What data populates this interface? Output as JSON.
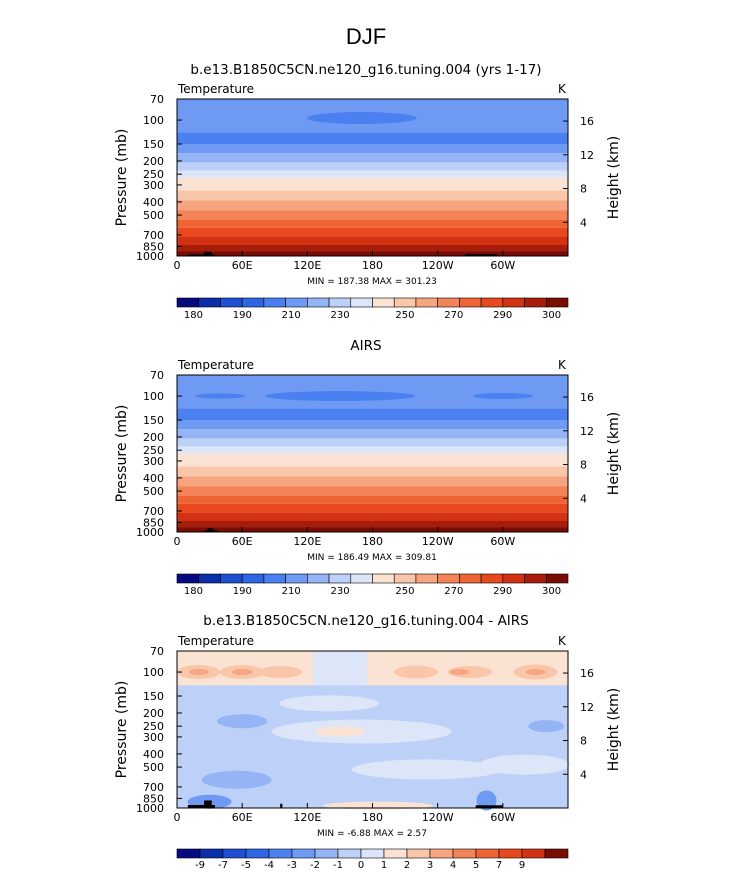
{
  "figure_title": "DJF",
  "chart_data": [
    {
      "type": "heatmap",
      "title": "b.e13.B1850C5CN.ne120_g16.tuning.004 (yrs 1-17)",
      "variable_label": "Temperature",
      "units": "K",
      "ylabel_left": "Pressure (mb)",
      "ylabel_right": "Height (km)",
      "x_ticks": [
        "0",
        "60E",
        "120E",
        "180",
        "120W",
        "60W"
      ],
      "x_tick_lon": [
        0,
        60,
        120,
        180,
        240,
        300
      ],
      "xlim": [
        0,
        360
      ],
      "p_ticks": [
        "70",
        "100",
        "150",
        "200",
        "250",
        "300",
        "400",
        "500",
        "700",
        "850",
        "1000"
      ],
      "p_tick_values": [
        70,
        100,
        150,
        200,
        250,
        300,
        400,
        500,
        700,
        850,
        1000
      ],
      "ylim_mb": [
        1000,
        70
      ],
      "y_scale": "log",
      "h_ticks": [
        "4",
        "8",
        "12",
        "16"
      ],
      "h_tick_km": [
        4,
        8,
        12,
        16
      ],
      "stats": "MIN = 187.38   MAX = 301.23",
      "min": 187.38,
      "max": 301.23,
      "colorbar_labels": [
        "180",
        "190",
        "210",
        "230",
        "250",
        "270",
        "290",
        "300"
      ]
    },
    {
      "type": "heatmap",
      "title": "AIRS",
      "variable_label": "Temperature",
      "units": "K",
      "ylabel_left": "Pressure (mb)",
      "ylabel_right": "Height (km)",
      "x_ticks": [
        "0",
        "60E",
        "120E",
        "180",
        "120W",
        "60W"
      ],
      "x_tick_lon": [
        0,
        60,
        120,
        180,
        240,
        300
      ],
      "xlim": [
        0,
        360
      ],
      "p_ticks": [
        "70",
        "100",
        "150",
        "200",
        "250",
        "300",
        "400",
        "500",
        "700",
        "850",
        "1000"
      ],
      "p_tick_values": [
        70,
        100,
        150,
        200,
        250,
        300,
        400,
        500,
        700,
        850,
        1000
      ],
      "ylim_mb": [
        1000,
        70
      ],
      "y_scale": "log",
      "h_ticks": [
        "4",
        "8",
        "12",
        "16"
      ],
      "h_tick_km": [
        4,
        8,
        12,
        16
      ],
      "stats": "MIN = 186.49   MAX = 309.81",
      "min": 186.49,
      "max": 309.81,
      "colorbar_labels": [
        "180",
        "190",
        "210",
        "230",
        "250",
        "270",
        "290",
        "300"
      ]
    },
    {
      "type": "heatmap",
      "title": "b.e13.B1850C5CN.ne120_g16.tuning.004 - AIRS",
      "variable_label": "Temperature",
      "units": "K",
      "ylabel_left": "Pressure (mb)",
      "ylabel_right": "Height (km)",
      "x_ticks": [
        "0",
        "60E",
        "120E",
        "180",
        "120W",
        "60W"
      ],
      "x_tick_lon": [
        0,
        60,
        120,
        180,
        240,
        300
      ],
      "xlim": [
        0,
        360
      ],
      "p_ticks": [
        "70",
        "100",
        "150",
        "200",
        "250",
        "300",
        "400",
        "500",
        "700",
        "850",
        "1000"
      ],
      "p_tick_values": [
        70,
        100,
        150,
        200,
        250,
        300,
        400,
        500,
        700,
        850,
        1000
      ],
      "ylim_mb": [
        1000,
        70
      ],
      "y_scale": "log",
      "h_ticks": [
        "4",
        "8",
        "12",
        "16"
      ],
      "h_tick_km": [
        4,
        8,
        12,
        16
      ],
      "stats": "MIN =   -6.88   MAX =     2.57",
      "min": -6.88,
      "max": 2.57,
      "colorbar_labels": [
        "-9",
        "-7",
        "-5",
        "-4",
        "-3",
        "-2",
        "-1",
        "0",
        "1",
        "2",
        "3",
        "4",
        "5",
        "7",
        "9"
      ]
    }
  ],
  "colors": {
    "abs_scale": [
      "#050a80",
      "#0a2daa",
      "#1f4fd2",
      "#2f66e6",
      "#4a80f0",
      "#6e9af4",
      "#95b4f6",
      "#bcd0f8",
      "#dde6f8",
      "#fbe3d4",
      "#f9c6aa",
      "#f6a580",
      "#f28458",
      "#ef6435",
      "#e8491f",
      "#d23212",
      "#a81c0a",
      "#7a0c04"
    ],
    "diff_scale": [
      "#050a80",
      "#0a2daa",
      "#1f4fd2",
      "#2f66e6",
      "#4a80f0",
      "#6e9af4",
      "#95b4f6",
      "#bcd0f8",
      "#dde6f8",
      "#fbe3d4",
      "#f9c6aa",
      "#f6a580",
      "#f28458",
      "#ef6435",
      "#e8491f",
      "#d23212",
      "#7a0c04"
    ]
  }
}
